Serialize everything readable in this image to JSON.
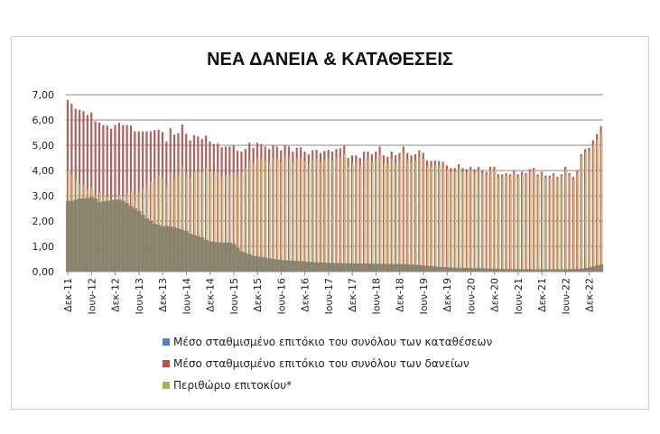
{
  "chart_data": {
    "type": "bar",
    "title": "ΝΕΑ ΔΑΝΕΙΑ & ΚΑΤΑΘΕΣΕΙΣ",
    "xlabel": "",
    "ylabel": "",
    "ylim": [
      0,
      7
    ],
    "yticks": [
      "0,00",
      "1,00",
      "2,00",
      "3,00",
      "4,00",
      "5,00",
      "6,00",
      "7,00"
    ],
    "xtick_labels": [
      "Δεκ-11",
      "Ιουν-12",
      "Δεκ-12",
      "Ιουν-13",
      "Δεκ-13",
      "Ιουν-14",
      "Δεκ-14",
      "Ιουν-15",
      "Δεκ-15",
      "Ιουν-16",
      "Δεκ-16",
      "Ιουν-17",
      "Δεκ-17",
      "Ιουν-18",
      "Δεκ-18",
      "Ιουν-19",
      "Δεκ-19",
      "Ιουν-20",
      "Δεκ-20",
      "Ιουν-21",
      "Δεκ-21",
      "Ιουν-22",
      "Δεκ-22"
    ],
    "xtick_step_months": 6,
    "grid": true,
    "legend_position": "bottom",
    "colors": {
      "deposits": "#4f81bd",
      "loans": "#c0504d",
      "margin": "#9bbb59",
      "deposits_drawn": "#84806a",
      "loans_drawn": "#b0625a",
      "margin_drawn": "#d3c08c"
    },
    "series": [
      {
        "key": "deposits",
        "name": "Μέσο σταθμισμένο επιτόκιο του συνόλου των καταθέσεων",
        "values": [
          2.8,
          2.8,
          2.85,
          2.9,
          2.9,
          2.92,
          2.95,
          2.9,
          2.75,
          2.78,
          2.8,
          2.82,
          2.85,
          2.85,
          2.8,
          2.7,
          2.6,
          2.5,
          2.4,
          2.25,
          2.1,
          2.0,
          1.9,
          1.85,
          1.8,
          1.8,
          1.78,
          1.75,
          1.7,
          1.65,
          1.6,
          1.5,
          1.45,
          1.4,
          1.35,
          1.25,
          1.2,
          1.18,
          1.15,
          1.15,
          1.15,
          1.15,
          1.1,
          0.95,
          0.8,
          0.75,
          0.68,
          0.62,
          0.6,
          0.58,
          0.55,
          0.53,
          0.5,
          0.48,
          0.47,
          0.45,
          0.44,
          0.43,
          0.42,
          0.41,
          0.4,
          0.39,
          0.38,
          0.37,
          0.36,
          0.35,
          0.35,
          0.35,
          0.34,
          0.34,
          0.33,
          0.33,
          0.33,
          0.32,
          0.32,
          0.32,
          0.32,
          0.31,
          0.31,
          0.31,
          0.31,
          0.3,
          0.3,
          0.3,
          0.3,
          0.3,
          0.29,
          0.28,
          0.27,
          0.26,
          0.25,
          0.23,
          0.22,
          0.2,
          0.19,
          0.18,
          0.17,
          0.16,
          0.15,
          0.15,
          0.15,
          0.14,
          0.14,
          0.13,
          0.13,
          0.13,
          0.12,
          0.12,
          0.12,
          0.11,
          0.11,
          0.11,
          0.1,
          0.1,
          0.1,
          0.1,
          0.1,
          0.1,
          0.09,
          0.09,
          0.09,
          0.09,
          0.09,
          0.09,
          0.09,
          0.09,
          0.09,
          0.1,
          0.1,
          0.11,
          0.12,
          0.14,
          0.16,
          0.2,
          0.24,
          0.28
        ]
      },
      {
        "key": "loans",
        "name": "Μέσο σταθμισμένο επιτόκιο του συνόλου των δανείων",
        "values": [
          6.8,
          6.65,
          6.45,
          6.4,
          6.35,
          6.2,
          6.3,
          5.95,
          5.9,
          5.8,
          5.78,
          5.65,
          5.8,
          5.9,
          5.8,
          5.8,
          5.78,
          5.55,
          5.55,
          5.55,
          5.55,
          5.55,
          5.6,
          5.62,
          5.52,
          5.15,
          5.68,
          5.42,
          5.48,
          5.82,
          5.45,
          5.2,
          5.4,
          5.35,
          5.25,
          5.38,
          5.15,
          5.05,
          5.08,
          4.92,
          4.95,
          4.95,
          5.0,
          4.78,
          4.75,
          4.85,
          5.1,
          4.9,
          5.1,
          5.05,
          4.95,
          4.85,
          5.0,
          4.95,
          4.8,
          5.0,
          4.95,
          4.75,
          4.9,
          4.92,
          4.75,
          4.65,
          4.8,
          4.82,
          4.7,
          4.78,
          4.82,
          4.75,
          4.85,
          4.88,
          5.0,
          4.5,
          4.6,
          4.6,
          4.5,
          4.75,
          4.75,
          4.65,
          4.75,
          4.95,
          4.6,
          4.55,
          4.75,
          4.6,
          4.7,
          4.95,
          4.7,
          4.6,
          4.65,
          4.8,
          4.7,
          4.4,
          4.38,
          4.4,
          4.38,
          4.35,
          4.2,
          4.1,
          4.1,
          4.25,
          4.1,
          4.05,
          4.15,
          4.05,
          4.15,
          4.0,
          3.95,
          4.15,
          4.15,
          3.85,
          3.85,
          3.9,
          3.85,
          4.0,
          3.85,
          3.95,
          3.9,
          4.05,
          4.1,
          3.85,
          3.95,
          3.8,
          3.8,
          3.9,
          3.75,
          3.85,
          4.15,
          3.9,
          3.75,
          4.0,
          4.65,
          4.85,
          4.9,
          5.2,
          5.45,
          5.75
        ]
      },
      {
        "key": "margin",
        "name": "Περιθώριο επιτοκίου*",
        "derived_from": "loans-deposits"
      }
    ]
  }
}
